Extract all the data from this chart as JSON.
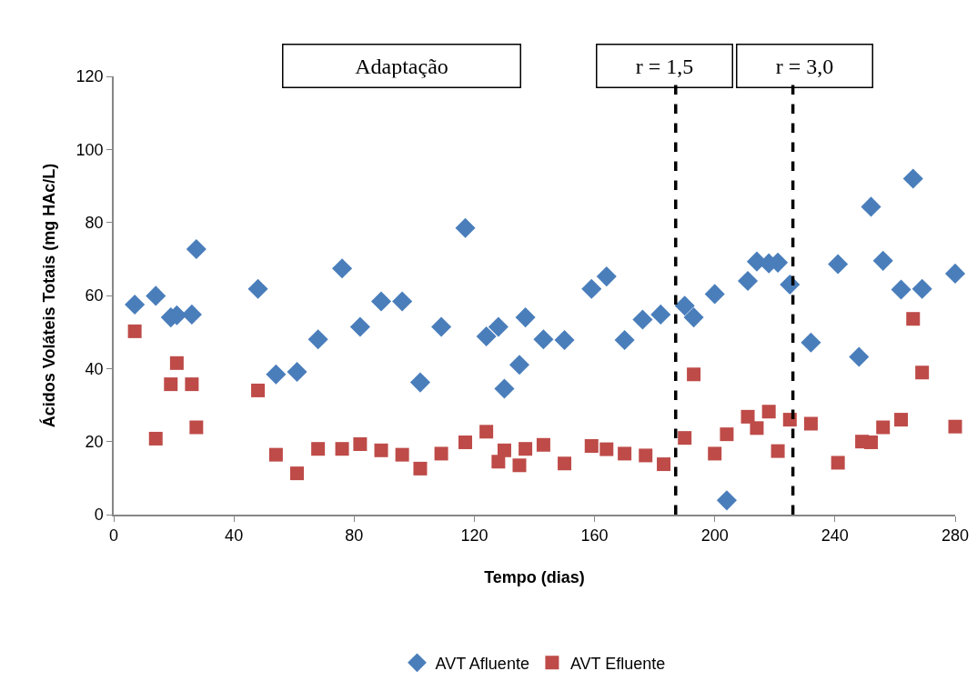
{
  "chart_data": {
    "type": "scatter",
    "xlabel": "Tempo (dias)",
    "ylabel": "Ácidos Voláteis Totais (mg HAc/L)",
    "xlim": [
      0,
      280
    ],
    "xticks": [
      0,
      40,
      80,
      120,
      160,
      200,
      240,
      280
    ],
    "ylim": [
      0,
      120
    ],
    "yticks": [
      0,
      20,
      40,
      60,
      80,
      100,
      120
    ],
    "grid": false,
    "legend": "bottom",
    "annotations": [
      "Adaptação",
      "r = 1,5",
      "r = 3,0"
    ],
    "ref_lines": [
      {
        "axis": "x",
        "value": 187,
        "color": "#000000",
        "line_style": "dashed"
      },
      {
        "axis": "x",
        "value": 226,
        "color": "#000000",
        "line_style": "dashed"
      }
    ],
    "series": [
      {
        "name": "AVT Afluente",
        "color": "#4a7ebb",
        "marker": "diamond",
        "x": [
          7,
          14,
          19,
          21,
          26,
          27.5,
          48,
          54,
          61,
          68,
          76,
          82,
          89,
          96,
          102,
          109,
          117,
          124,
          128,
          130,
          135,
          137,
          143,
          150,
          159,
          164,
          170,
          176,
          182,
          190,
          193,
          200,
          204,
          211,
          214,
          218,
          221,
          225,
          232,
          241,
          248,
          252,
          256,
          262,
          266,
          269,
          280
        ],
        "values": [
          57.5,
          59.9,
          54,
          54.6,
          54.8,
          72.7,
          61.8,
          38.4,
          39.1,
          48,
          67.4,
          51.4,
          58.4,
          58.4,
          36.2,
          51.4,
          78.5,
          48.8,
          51.4,
          34.5,
          41,
          54,
          48,
          47.8,
          61.8,
          65.2,
          47.8,
          53.4,
          54.8,
          57.2,
          54,
          60.4,
          3.9,
          64,
          69.3,
          68.8,
          69,
          63,
          47.1,
          68.6,
          43.2,
          84.3,
          69.5,
          61.6,
          92,
          61.8,
          66
        ]
      },
      {
        "name": "AVT Efluente",
        "color": "#be4b48",
        "marker": "square",
        "x": [
          7,
          14,
          19,
          21,
          26,
          27.5,
          48,
          54,
          61,
          68,
          76,
          82,
          89,
          96,
          102,
          109,
          117,
          124,
          128,
          130,
          135,
          137,
          143,
          150,
          159,
          164,
          170,
          177,
          183,
          190,
          193,
          200,
          204,
          211,
          214,
          218,
          221,
          225,
          232,
          241,
          249,
          252,
          256,
          262,
          266,
          269,
          280
        ],
        "values": [
          50.2,
          20.8,
          35.7,
          41.5,
          35.7,
          23.9,
          34,
          16.4,
          11.3,
          18,
          18,
          19.3,
          17.6,
          16.4,
          12.6,
          16.7,
          19.8,
          22.7,
          14.5,
          17.6,
          13.5,
          18,
          19.1,
          14,
          18.8,
          17.9,
          16.7,
          16.2,
          13.8,
          21,
          38.4,
          16.7,
          22,
          26.8,
          23.7,
          28.2,
          17.4,
          26,
          24.9,
          14.2,
          20,
          19.8,
          23.9,
          26,
          53.6,
          38.9,
          24.1
        ]
      }
    ]
  }
}
